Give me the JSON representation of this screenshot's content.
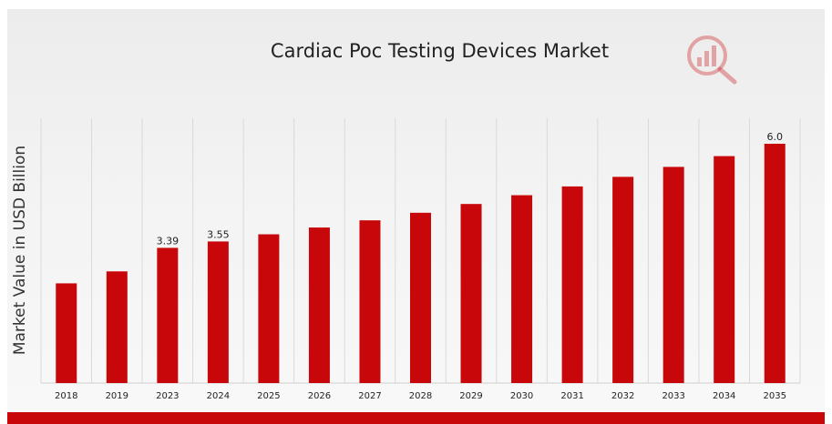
{
  "chart_data": {
    "type": "bar",
    "title": "Cardiac Poc Testing Devices Market",
    "ylabel": "Market Value in USD Billion",
    "xlabel": "",
    "categories": [
      "2018",
      "2019",
      "2023",
      "2024",
      "2025",
      "2026",
      "2027",
      "2028",
      "2029",
      "2030",
      "2031",
      "2032",
      "2033",
      "2034",
      "2035"
    ],
    "values": [
      2.5,
      2.8,
      3.39,
      3.55,
      3.73,
      3.9,
      4.08,
      4.27,
      4.49,
      4.71,
      4.93,
      5.17,
      5.42,
      5.69,
      6.0
    ],
    "data_labels": [
      "",
      "",
      "3.39",
      "3.55",
      "",
      "",
      "",
      "",
      "",
      "",
      "",
      "",
      "",
      "",
      "6.0"
    ],
    "ylim": [
      0,
      6.0
    ],
    "grid": "vertical",
    "legend": "none",
    "bar_color": "#c8070a"
  },
  "logo": {
    "name": "brand-logo-icon",
    "color": "#d0464a"
  }
}
